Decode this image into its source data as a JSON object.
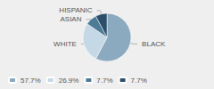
{
  "chart_data": {
    "type": "pie",
    "categories": [
      "BLACK",
      "WHITE",
      "ASIAN",
      "HISPANIC"
    ],
    "values": [
      57.7,
      26.9,
      7.7,
      7.7
    ],
    "value_labels": [
      "57.7%",
      "26.9%",
      "7.7%",
      "7.7%"
    ],
    "colors": [
      "#8baabf",
      "#c5d8e5",
      "#4d7a96",
      "#2b4f6a"
    ],
    "legend": "bottom"
  }
}
